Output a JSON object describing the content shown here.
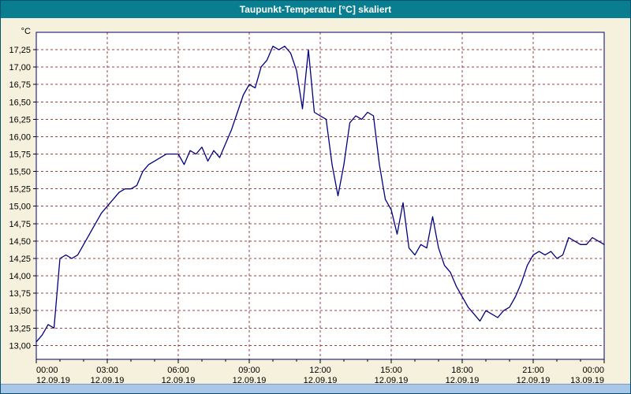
{
  "window": {
    "title": "Taupunkt-Temperatur [°C] skaliert"
  },
  "colors": {
    "titlebar_bg": "#0a7e91",
    "page_bg": "#f6f1dd",
    "plot_bg": "#ffffff",
    "grid": "#a04040",
    "axis": "#000066",
    "line": "#000080",
    "text": "#000000",
    "scrollbar": "#abc7e8"
  },
  "chart_data": {
    "type": "line",
    "title": "Taupunkt-Temperatur [°C] skaliert",
    "ylabel": "°C",
    "xlabel": "",
    "grid": true,
    "legend_position": "none",
    "ylim": [
      12.8,
      17.5
    ],
    "yticks": [
      {
        "value": 17.25,
        "label": "17,25"
      },
      {
        "value": 17.0,
        "label": "17,00"
      },
      {
        "value": 16.75,
        "label": "16,75"
      },
      {
        "value": 16.5,
        "label": "16,50"
      },
      {
        "value": 16.25,
        "label": "16,25"
      },
      {
        "value": 16.0,
        "label": "16,00"
      },
      {
        "value": 15.75,
        "label": "15,75"
      },
      {
        "value": 15.5,
        "label": "15,50"
      },
      {
        "value": 15.25,
        "label": "15,25"
      },
      {
        "value": 15.0,
        "label": "15,00"
      },
      {
        "value": 14.75,
        "label": "14,75"
      },
      {
        "value": 14.5,
        "label": "14,50"
      },
      {
        "value": 14.25,
        "label": "14,25"
      },
      {
        "value": 14.0,
        "label": "14,00"
      },
      {
        "value": 13.75,
        "label": "13,75"
      },
      {
        "value": 13.5,
        "label": "13,50"
      },
      {
        "value": 13.25,
        "label": "13,25"
      },
      {
        "value": 13.0,
        "label": "13,00"
      }
    ],
    "xticks": [
      {
        "hour": 0,
        "time": "00:00",
        "date": "12.09.19"
      },
      {
        "hour": 3,
        "time": "03:00",
        "date": "12.09.19"
      },
      {
        "hour": 6,
        "time": "06:00",
        "date": "12.09.19"
      },
      {
        "hour": 9,
        "time": "09:00",
        "date": "12.09.19"
      },
      {
        "hour": 12,
        "time": "12:00",
        "date": "12.09.19"
      },
      {
        "hour": 15,
        "time": "15:00",
        "date": "12.09.19"
      },
      {
        "hour": 18,
        "time": "18:00",
        "date": "12.09.19"
      },
      {
        "hour": 21,
        "time": "21:00",
        "date": "12.09.19"
      },
      {
        "hour": 24,
        "time": "00:00",
        "date": "13.09.19"
      }
    ],
    "series": [
      {
        "name": "Taupunkt-Temperatur",
        "color": "#000080",
        "x_hours": [
          0,
          0.25,
          0.5,
          0.75,
          1,
          1.25,
          1.5,
          1.75,
          2,
          2.25,
          2.5,
          2.75,
          3,
          3.25,
          3.5,
          3.75,
          4,
          4.25,
          4.5,
          4.75,
          5,
          5.25,
          5.5,
          5.75,
          6,
          6.25,
          6.5,
          6.75,
          7,
          7.25,
          7.5,
          7.75,
          8,
          8.25,
          8.5,
          8.75,
          9,
          9.25,
          9.5,
          9.75,
          10,
          10.25,
          10.5,
          10.75,
          11,
          11.25,
          11.5,
          11.75,
          12,
          12.25,
          12.5,
          12.75,
          13,
          13.25,
          13.5,
          13.75,
          14,
          14.25,
          14.5,
          14.75,
          15,
          15.25,
          15.5,
          15.75,
          16,
          16.25,
          16.5,
          16.75,
          17,
          17.25,
          17.5,
          17.75,
          18,
          18.25,
          18.5,
          18.75,
          19,
          19.25,
          19.5,
          19.75,
          20,
          20.25,
          20.5,
          20.75,
          21,
          21.25,
          21.5,
          21.75,
          22,
          22.25,
          22.5,
          22.75,
          23,
          23.25,
          23.5,
          23.75,
          24
        ],
        "values": [
          13.05,
          13.15,
          13.3,
          13.25,
          14.25,
          14.3,
          14.25,
          14.3,
          14.45,
          14.6,
          14.75,
          14.9,
          15.0,
          15.1,
          15.2,
          15.25,
          15.25,
          15.3,
          15.5,
          15.6,
          15.65,
          15.7,
          15.75,
          15.75,
          15.75,
          15.6,
          15.8,
          15.75,
          15.85,
          15.65,
          15.8,
          15.7,
          15.9,
          16.1,
          16.35,
          16.6,
          16.75,
          16.7,
          17.0,
          17.1,
          17.3,
          17.25,
          17.3,
          17.2,
          16.95,
          16.4,
          17.25,
          16.35,
          16.3,
          16.25,
          15.6,
          15.15,
          15.6,
          16.2,
          16.3,
          16.25,
          16.35,
          16.3,
          15.6,
          15.1,
          14.95,
          14.6,
          15.05,
          14.4,
          14.3,
          14.45,
          14.4,
          14.85,
          14.4,
          14.15,
          14.05,
          13.85,
          13.7,
          13.55,
          13.45,
          13.35,
          13.5,
          13.45,
          13.4,
          13.5,
          13.55,
          13.7,
          13.9,
          14.15,
          14.3,
          14.35,
          14.3,
          14.35,
          14.25,
          14.3,
          14.55,
          14.5,
          14.45,
          14.45,
          14.55,
          14.5,
          14.45
        ]
      }
    ]
  }
}
